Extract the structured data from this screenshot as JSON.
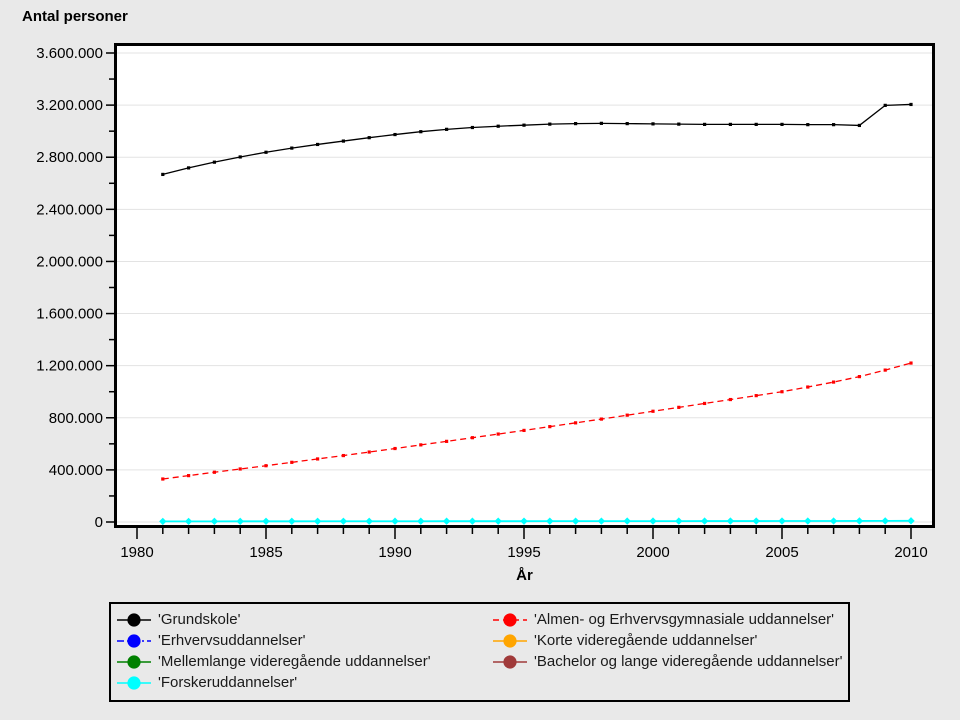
{
  "theme": {
    "page_bg": "#E9E9E9",
    "plot_bg": "#FFFFFF",
    "grid_color": "#E3E3E3",
    "frame_color": "#000000",
    "text_color": "#000000"
  },
  "chart_data": {
    "type": "line",
    "title": "Antal personer",
    "xlabel": "År",
    "ylabel": "Antal personer",
    "grid": "horizontal major gridlines only, white plot area, thick black frame",
    "legend_position": "bottom, boxed, two columns",
    "xlim": [
      1979.2,
      2010.9
    ],
    "ylim": [
      0,
      3600000
    ],
    "x_major_ticks": [
      1980,
      1985,
      1990,
      1995,
      2000,
      2005,
      2010
    ],
    "x_minor_tick_step": 1,
    "y_ticks": [
      {
        "value": 0,
        "label": "0"
      },
      {
        "value": 400000,
        "label": "400.000"
      },
      {
        "value": 800000,
        "label": "800.000"
      },
      {
        "value": 1200000,
        "label": "1.200.000"
      },
      {
        "value": 1600000,
        "label": "1.600.000"
      },
      {
        "value": 2000000,
        "label": "2.000.000"
      },
      {
        "value": 2400000,
        "label": "2.400.000"
      },
      {
        "value": 2800000,
        "label": "2.800.000"
      },
      {
        "value": 3200000,
        "label": "3.200.000"
      },
      {
        "value": 3600000,
        "label": "3.600.000"
      }
    ],
    "y_minor_ticks": [
      200000,
      600000,
      1000000,
      1400000,
      1800000,
      2200000,
      2600000,
      3000000,
      3400000
    ],
    "x": [
      1981,
      1982,
      1983,
      1984,
      1985,
      1986,
      1987,
      1988,
      1989,
      1990,
      1991,
      1992,
      1993,
      1994,
      1995,
      1996,
      1997,
      1998,
      1999,
      2000,
      2001,
      2002,
      2003,
      2004,
      2005,
      2006,
      2007,
      2008,
      2009,
      2010
    ],
    "series": [
      {
        "name": "Grundskole",
        "color": "#000000",
        "line_style": "solid",
        "dasharray": "",
        "marker": "square",
        "line_width": 1.3,
        "values": [
          2668000,
          2718000,
          2762000,
          2802000,
          2838000,
          2870000,
          2898000,
          2924000,
          2950000,
          2974000,
          2996000,
          3014000,
          3028000,
          3038000,
          3046000,
          3054000,
          3058000,
          3060000,
          3058000,
          3056000,
          3054000,
          3052000,
          3052000,
          3052000,
          3052000,
          3050000,
          3050000,
          3044000,
          3198000,
          3205000
        ]
      },
      {
        "name": "Erhvervsuddannelser",
        "color": "#0000FF",
        "line_style": "dash-dot",
        "dasharray": "7 3 2 3",
        "marker": "square",
        "line_width": 1.3,
        "values": []
      },
      {
        "name": "Mellemlange videregående uddannelser",
        "color": "#008000",
        "line_style": "solid",
        "dasharray": "",
        "marker": "square",
        "line_width": 1.3,
        "values": []
      },
      {
        "name": "Forskeruddannelser",
        "color": "#00FFFF",
        "line_style": "solid",
        "dasharray": "",
        "marker": "diamond",
        "line_width": 1.8,
        "values": [
          4600,
          4800,
          5000,
          5100,
          5300,
          5400,
          5500,
          5700,
          5800,
          5900,
          6000,
          6100,
          6200,
          6300,
          6400,
          6500,
          6600,
          6700,
          6800,
          6900,
          7000,
          7100,
          7200,
          7300,
          7400,
          7500,
          7700,
          8000,
          8500,
          9000
        ]
      },
      {
        "name": "Almen- og Erhvervsgymnasiale uddannelser",
        "color": "#FF0000",
        "line_style": "dashed",
        "dasharray": "6 4",
        "marker": "square",
        "line_width": 1.3,
        "values": [
          330000,
          356000,
          382000,
          407000,
          432000,
          458000,
          484000,
          510000,
          537000,
          564000,
          592000,
          619000,
          647000,
          675000,
          703000,
          732000,
          761000,
          790000,
          820000,
          850000,
          880000,
          910000,
          940000,
          970000,
          1000000,
          1036000,
          1074000,
          1116000,
          1166000,
          1220000
        ]
      },
      {
        "name": "Korte videregående uddannelser",
        "color": "#FFA500",
        "line_style": "solid",
        "dasharray": "",
        "marker": "square",
        "line_width": 1.3,
        "values": []
      },
      {
        "name": "Bachelor og lange videregående uddannelser",
        "color": "#A03A3A",
        "line_style": "solid",
        "dasharray": "",
        "marker": "square",
        "line_width": 1.3,
        "values": []
      }
    ]
  },
  "legend": {
    "columns": [
      [
        {
          "label": "'Grundskole'",
          "series_index": 0
        },
        {
          "label": "'Erhvervsuddannelser'",
          "series_index": 1
        },
        {
          "label": "'Mellemlange videregående uddannelser'",
          "series_index": 2
        },
        {
          "label": "'Forskeruddannelser'",
          "series_index": 3
        }
      ],
      [
        {
          "label": "'Almen- og Erhvervsgymnasiale uddannelser'",
          "series_index": 4
        },
        {
          "label": "'Korte videregående uddannelser'",
          "series_index": 5
        },
        {
          "label": "'Bachelor og lange videregående uddannelser'",
          "series_index": 6
        }
      ]
    ]
  }
}
